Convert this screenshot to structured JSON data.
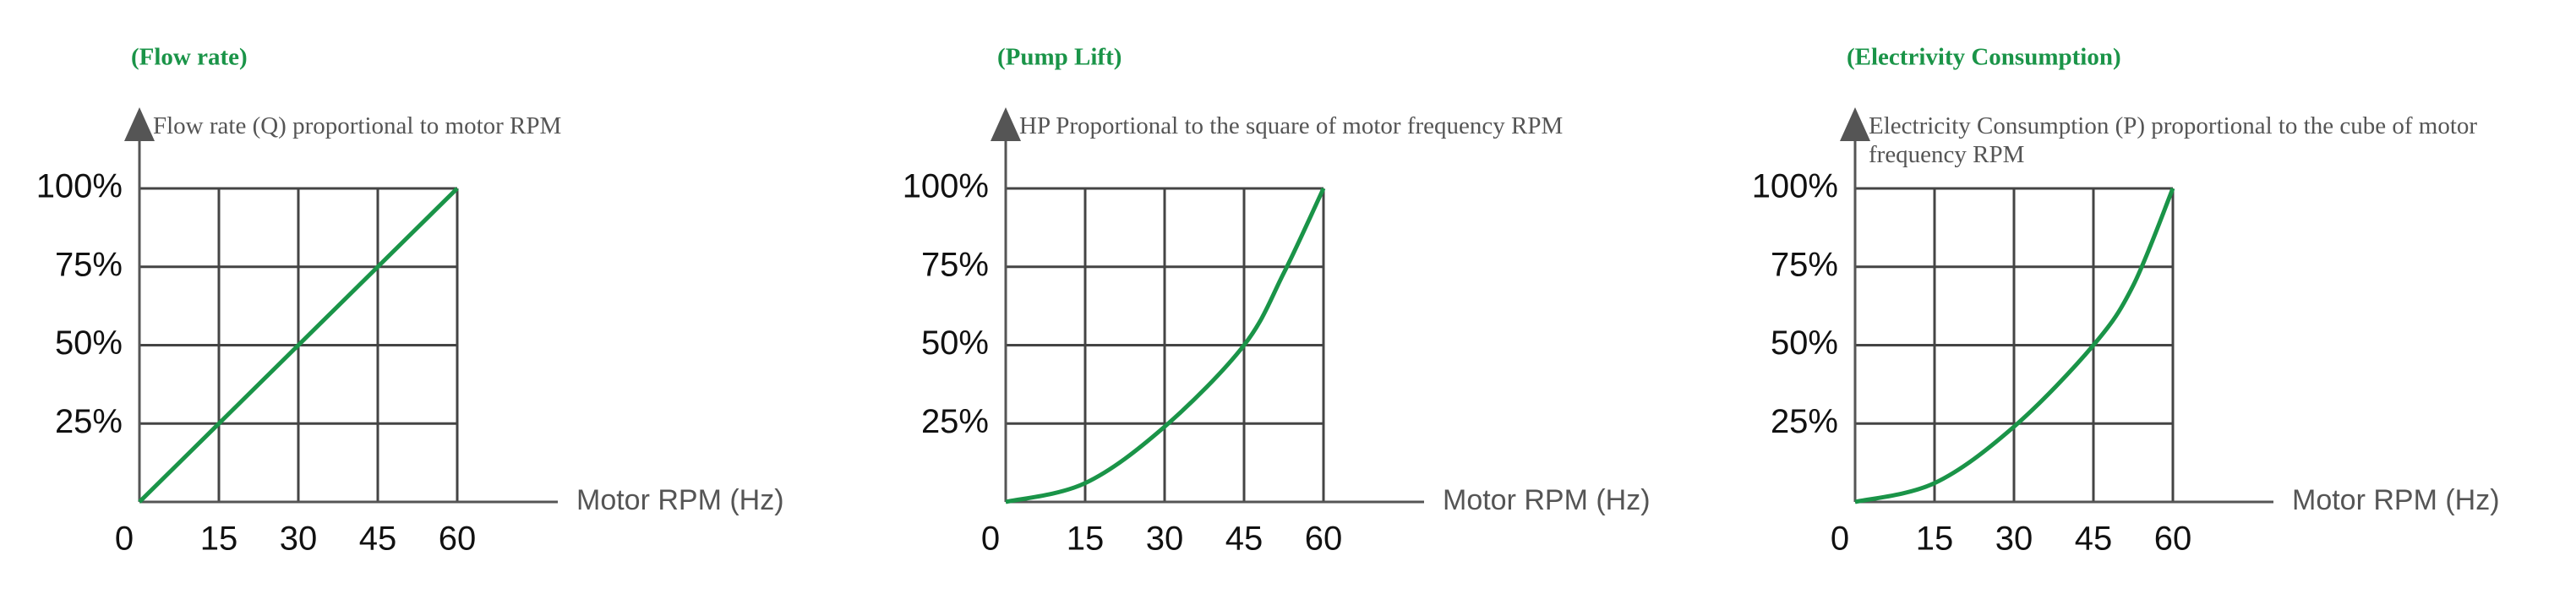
{
  "chart_data": [
    {
      "type": "line",
      "title": "(Flow rate)",
      "subtitle": "Flow rate (Q) proportional to motor RPM",
      "x_label": "Motor RPM (Hz)",
      "x": [
        0,
        15,
        30,
        45,
        60
      ],
      "values": [
        0,
        25,
        50,
        75,
        100
      ],
      "color": "#1a9448",
      "xlim": [
        0,
        60
      ],
      "ylim": [
        0,
        100
      ],
      "xticks": [
        0,
        15,
        30,
        45,
        60
      ],
      "yticks": [
        {
          "value": 25,
          "label": "25%"
        },
        {
          "value": 50,
          "label": "50%"
        },
        {
          "value": 75,
          "label": "75%"
        },
        {
          "value": 100,
          "label": "100%"
        }
      ],
      "grid": true
    },
    {
      "type": "line",
      "title": "(Pump Lift)",
      "subtitle": "HP Proportional to the square of motor frequency RPM",
      "x_label": "Motor RPM (Hz)",
      "x": [
        0,
        15,
        30,
        45,
        52.5,
        60
      ],
      "values": [
        0,
        6,
        24,
        50,
        73,
        100
      ],
      "color": "#1a9448",
      "xlim": [
        0,
        60
      ],
      "ylim": [
        0,
        100
      ],
      "xticks": [
        0,
        15,
        30,
        45,
        60
      ],
      "yticks": [
        {
          "value": 25,
          "label": "25%"
        },
        {
          "value": 50,
          "label": "50%"
        },
        {
          "value": 75,
          "label": "75%"
        },
        {
          "value": 100,
          "label": "100%"
        }
      ],
      "grid": true
    },
    {
      "type": "line",
      "title": "(Electrivity Consumption)",
      "subtitle": "Electricity Consumption (P) proportional to the cube of motor frequency RPM",
      "x_label": "Motor RPM (Hz)",
      "x": [
        0,
        15,
        30,
        45,
        52.5,
        60
      ],
      "values": [
        0,
        6,
        24,
        50,
        69,
        100
      ],
      "color": "#1a9448",
      "xlim": [
        0,
        60
      ],
      "ylim": [
        0,
        100
      ],
      "xticks": [
        0,
        15,
        30,
        45,
        60
      ],
      "yticks": [
        {
          "value": 25,
          "label": "25%"
        },
        {
          "value": 50,
          "label": "50%"
        },
        {
          "value": 75,
          "label": "75%"
        },
        {
          "value": 100,
          "label": "100%"
        }
      ],
      "grid": true
    }
  ]
}
